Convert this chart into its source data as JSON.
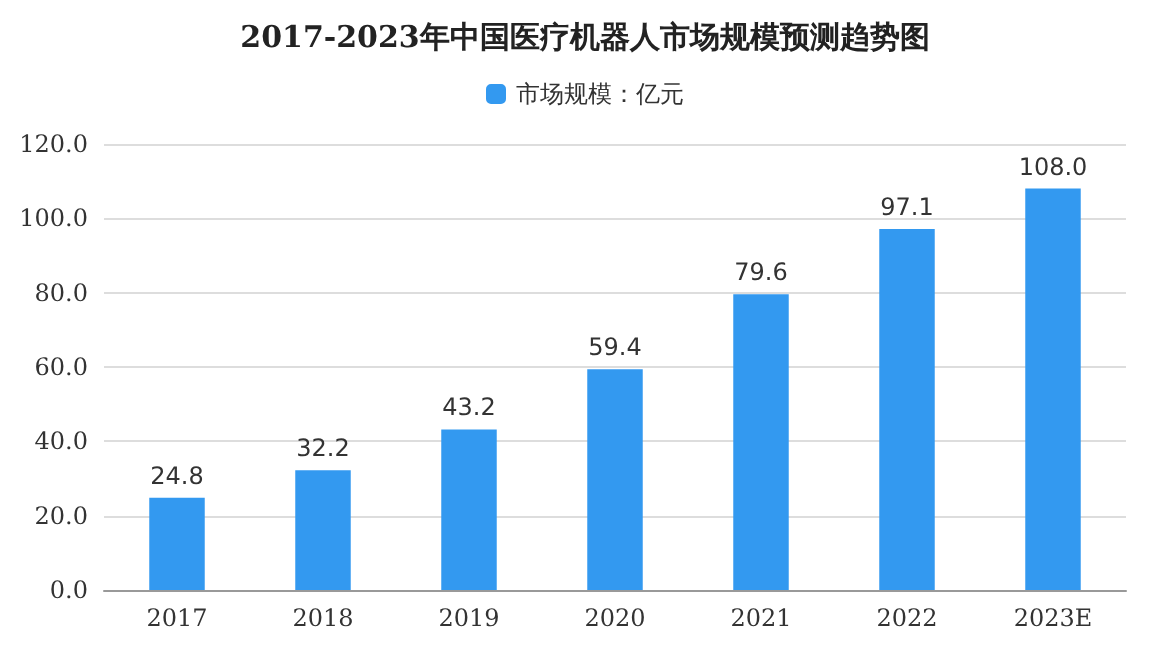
{
  "chart_data": {
    "type": "bar",
    "title": "2017-2023年中国医疗机器人市场规模预测趋势图",
    "categories": [
      "2017",
      "2018",
      "2019",
      "2020",
      "2021",
      "2022",
      "2023E"
    ],
    "series": [
      {
        "name": "市场规模：亿元",
        "color": "#3399f0",
        "values": [
          24.8,
          32.2,
          43.2,
          59.4,
          79.6,
          97.1,
          108.0
        ],
        "value_labels": [
          "24.8",
          "32.2",
          "43.2",
          "59.4",
          "79.6",
          "97.1",
          "108.0"
        ]
      }
    ],
    "ylim": [
      0,
      120
    ],
    "yticks": [
      {
        "value": 0,
        "label": "0.0"
      },
      {
        "value": 20,
        "label": "20.0"
      },
      {
        "value": 40,
        "label": "40.0"
      },
      {
        "value": 60,
        "label": "60.0"
      },
      {
        "value": 80,
        "label": "80.0"
      },
      {
        "value": 100,
        "label": "100.0"
      },
      {
        "value": 120,
        "label": "120.0"
      }
    ],
    "grid": "y",
    "legend": "top"
  }
}
